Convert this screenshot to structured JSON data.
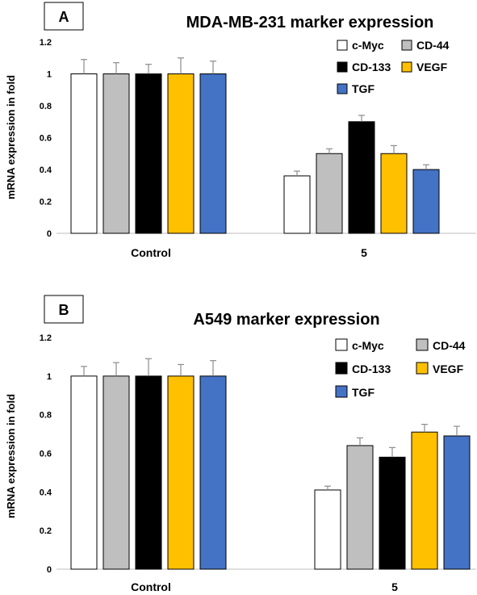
{
  "chart_data": [
    {
      "type": "bar",
      "panel_label": "A",
      "title": "MDA-MB-231  marker expression",
      "ylabel": "mRNA expression in fold",
      "xlabel": "",
      "ylim": [
        0,
        1.2
      ],
      "yticks": [
        "0",
        "0.2",
        "0.4",
        "0.6",
        "0.8",
        "1",
        "1.2"
      ],
      "categories": [
        "Control",
        "5"
      ],
      "legend_position": "top-right",
      "series": [
        {
          "name": "c-Myc",
          "color": "#ffffff",
          "values": [
            1.0,
            0.36
          ],
          "errors": [
            0.09,
            0.03
          ]
        },
        {
          "name": "CD-44",
          "color": "#bfbfbf",
          "values": [
            1.0,
            0.5
          ],
          "errors": [
            0.07,
            0.03
          ]
        },
        {
          "name": "CD-133",
          "color": "#000000",
          "values": [
            1.0,
            0.7
          ],
          "errors": [
            0.06,
            0.04
          ]
        },
        {
          "name": "VEGF",
          "color": "#ffc000",
          "values": [
            1.0,
            0.5
          ],
          "errors": [
            0.1,
            0.05
          ]
        },
        {
          "name": "TGF",
          "color": "#4472c4",
          "values": [
            1.0,
            0.4
          ],
          "errors": [
            0.08,
            0.03
          ]
        }
      ]
    },
    {
      "type": "bar",
      "panel_label": "B",
      "title": "A549 marker expression",
      "ylabel": "mRNA expression in fold",
      "xlabel": "",
      "ylim": [
        0,
        1.2
      ],
      "yticks": [
        "0",
        "0.2",
        "0.4",
        "0.6",
        "0.8",
        "1",
        "1.2"
      ],
      "categories": [
        "Control",
        "5"
      ],
      "legend_position": "top-right",
      "series": [
        {
          "name": "c-Myc",
          "color": "#ffffff",
          "values": [
            1.0,
            0.41
          ],
          "errors": [
            0.05,
            0.02
          ]
        },
        {
          "name": "CD-44",
          "color": "#bfbfbf",
          "values": [
            1.0,
            0.64
          ],
          "errors": [
            0.07,
            0.04
          ]
        },
        {
          "name": "CD-133",
          "color": "#000000",
          "values": [
            1.0,
            0.58
          ],
          "errors": [
            0.09,
            0.05
          ]
        },
        {
          "name": "VEGF",
          "color": "#ffc000",
          "values": [
            1.0,
            0.71
          ],
          "errors": [
            0.06,
            0.04
          ]
        },
        {
          "name": "TGF",
          "color": "#4472c4",
          "values": [
            1.0,
            0.69
          ],
          "errors": [
            0.08,
            0.05
          ]
        }
      ]
    }
  ]
}
